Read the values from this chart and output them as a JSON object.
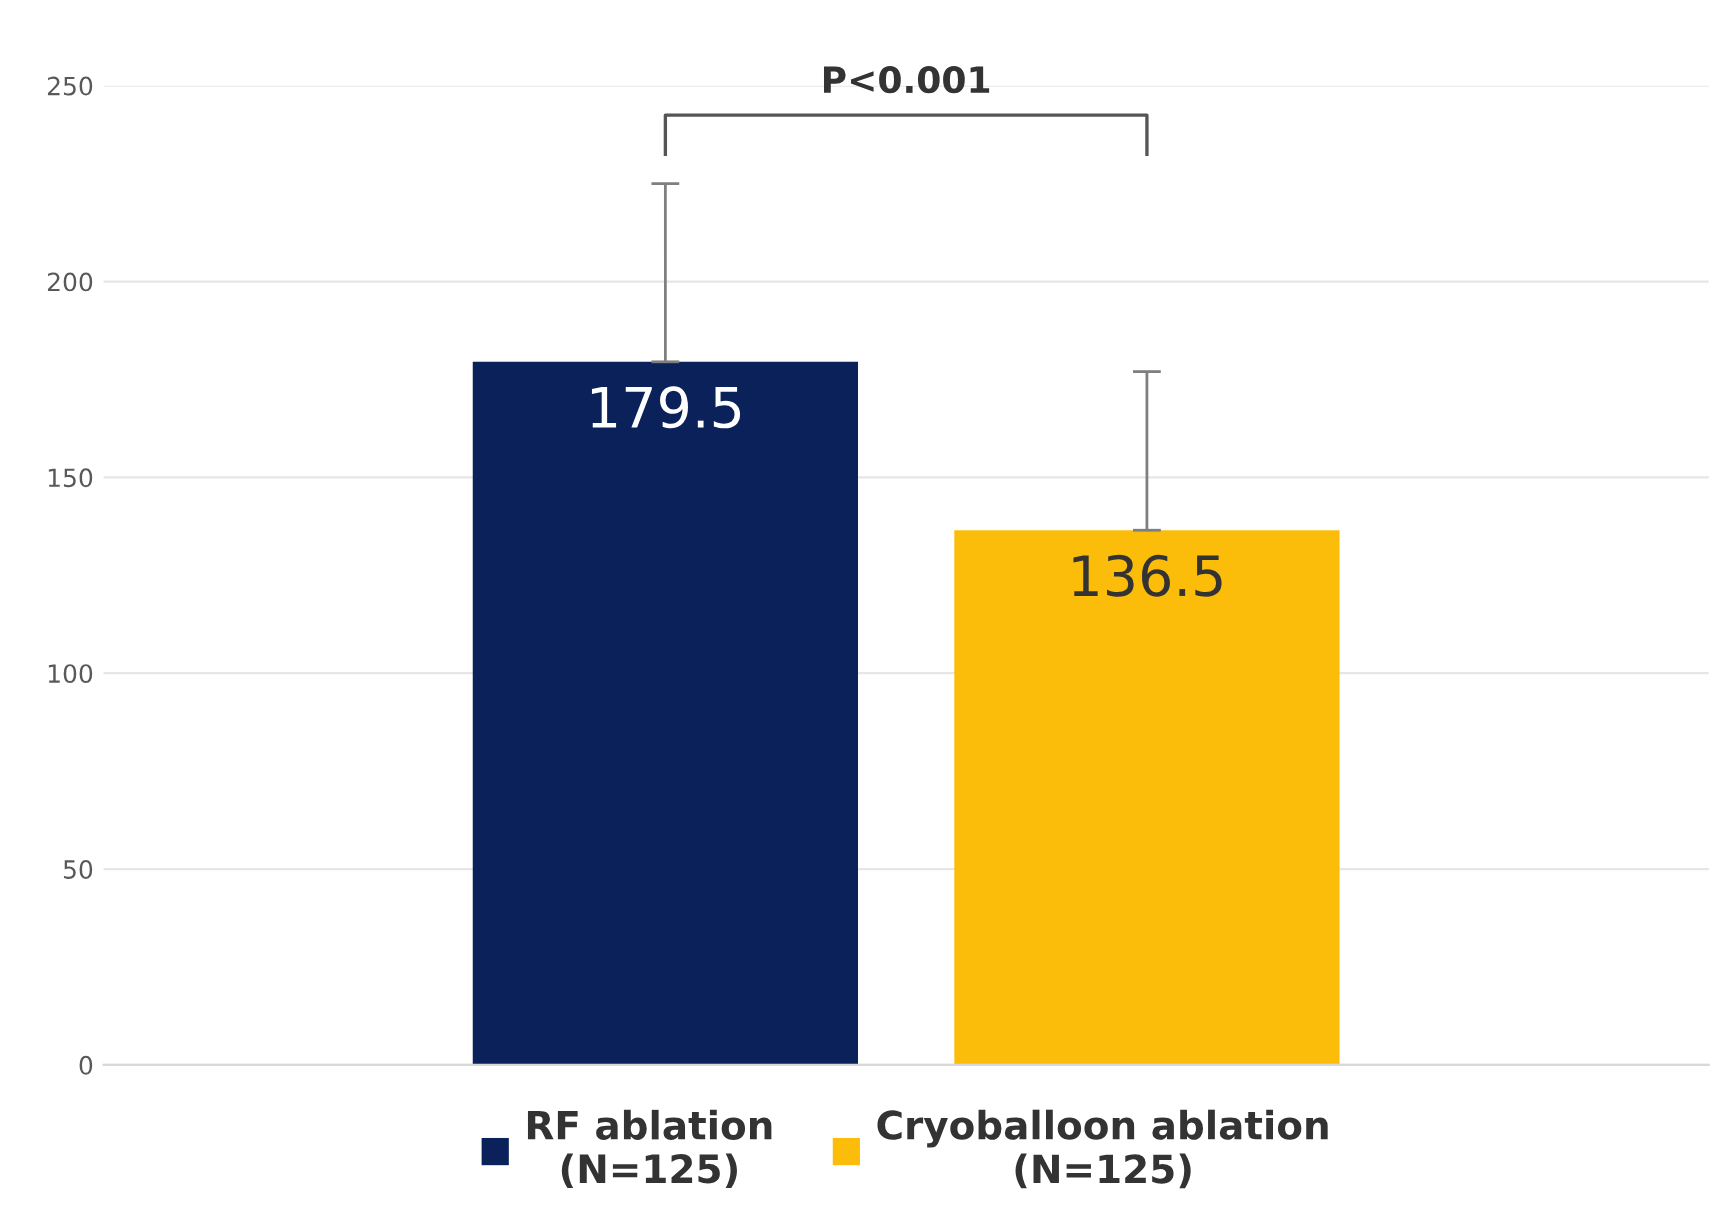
{
  "chart_data": {
    "type": "bar",
    "categories": [
      null
    ],
    "series": [
      {
        "name": "RF ablation\n(N=125)",
        "color": "#0a2259",
        "values": [
          179.5
        ],
        "errors": [
          [
            179.5,
            225
          ]
        ]
      },
      {
        "name": "Cryoballoon ablation\n(N=125)",
        "color": "#fbbd09",
        "values": [
          136.5
        ],
        "errors": [
          [
            136.5,
            177
          ]
        ]
      }
    ],
    "ylim": [
      0,
      250
    ],
    "yticks": [
      0,
      50,
      100,
      150,
      200,
      250
    ],
    "grid": "y",
    "legend": "bottom",
    "data_labels": true,
    "annotations": [
      "P<0.001"
    ]
  }
}
